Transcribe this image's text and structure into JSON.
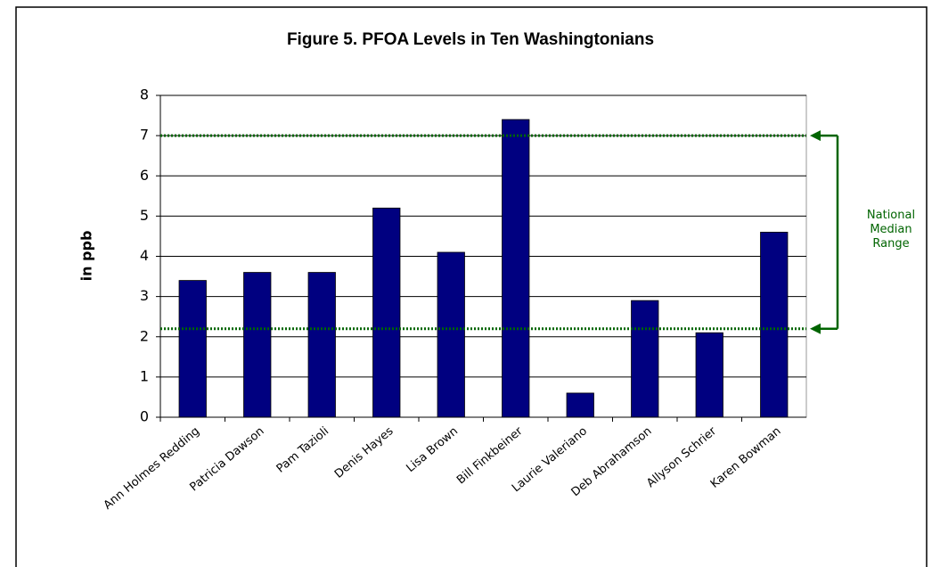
{
  "chart_data": {
    "type": "bar",
    "title": "Figure 5.  PFOA Levels in Ten Washingtonians",
    "y_label": "in ppb",
    "categories": [
      "Ann Holmes Redding",
      "Patricia  Dawson",
      "Pam  Tazioli",
      "Denis  Hayes",
      "Lisa  Brown",
      "Bill  Finkbeiner",
      "Laurie  Valeriano",
      "Deb  Abrahamson",
      "Allyson  Schrier",
      "Karen Bowman"
    ],
    "values": [
      3.4,
      3.6,
      3.6,
      5.2,
      4.1,
      7.4,
      0.6,
      2.9,
      2.1,
      4.6
    ],
    "color": "#000080",
    "ylim": [
      0,
      8
    ],
    "yticks": [
      0,
      1,
      2,
      3,
      4,
      5,
      6,
      7,
      8
    ],
    "grid": true,
    "reference_lines": [
      7,
      2.2
    ],
    "reference_color": "#006400",
    "annotation": "National Median Range"
  }
}
